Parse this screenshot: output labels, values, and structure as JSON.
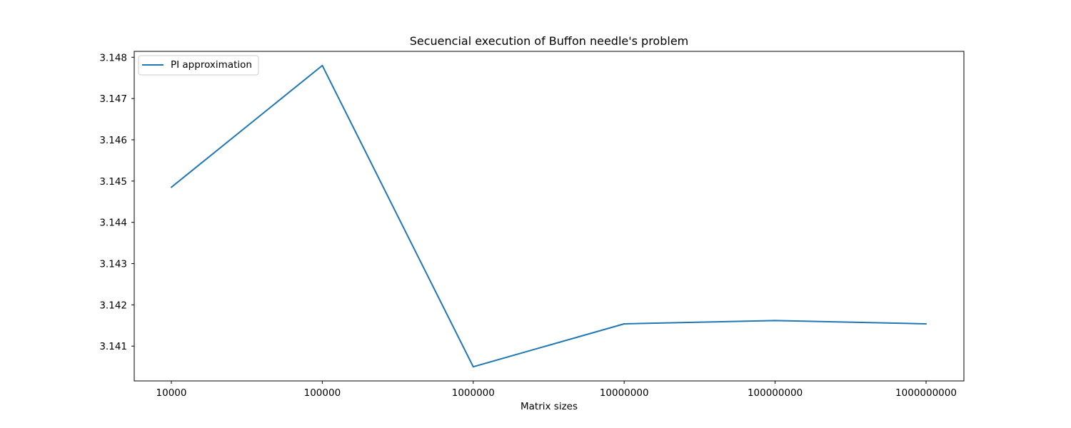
{
  "chart_data": {
    "type": "line",
    "title": "Secuencial execution of Buffon needle's problem",
    "xlabel": "Matrix sizes",
    "ylabel": "",
    "categories": [
      "10000",
      "100000",
      "1000000",
      "10000000",
      "100000000",
      "1000000000"
    ],
    "series": [
      {
        "name": "PI approximation",
        "values": [
          3.14485,
          3.1478,
          3.1405,
          3.14154,
          3.14162,
          3.14154
        ],
        "color": "#1f77b4"
      }
    ],
    "yticks": [
      "3.141",
      "3.142",
      "3.143",
      "3.144",
      "3.145",
      "3.146",
      "3.147",
      "3.148"
    ],
    "ylim": [
      3.140157,
      3.148143
    ],
    "grid": false,
    "legend": "upper left"
  }
}
